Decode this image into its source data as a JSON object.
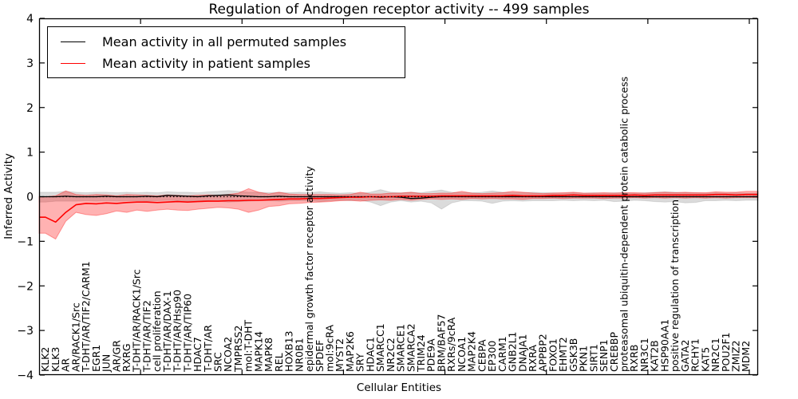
{
  "figure": {
    "title": "Regulation of Androgen receptor activity -- 499 samples"
  },
  "chart_data": {
    "type": "line",
    "title": "Regulation of Androgen receptor activity -- 499 samples",
    "xlabel": "Cellular Entities",
    "ylabel": "Inferred Activity",
    "ylim": [
      -4,
      4
    ],
    "grid": false,
    "legend_position": "upper left",
    "ytick_values": [
      4,
      3,
      2,
      1,
      0,
      -1,
      -2,
      -3,
      -4
    ],
    "ytick_labels": [
      "4",
      "3",
      "2",
      "1",
      "0",
      "−1",
      "−2",
      "−3",
      "−4"
    ],
    "xtick_values": [
      10,
      20,
      30,
      40,
      50,
      60,
      70
    ],
    "zero_line": {
      "value": 0,
      "style": "dotted",
      "color": "#000000"
    },
    "categories": [
      "KLK2",
      "KLK3",
      "AR",
      "AR/RACK1/Src",
      "T-DHT/AR/TIF2/CARM1",
      "EGR1",
      "JUN",
      "AR/GR",
      "RXRG",
      "T-DHT/AR/RACK1/Src",
      "T-DHT/AR/TIF2",
      "cell proliferation",
      "T-DHT/AR/DAX-1",
      "T-DHT/AR/Hsp90",
      "T-DHT/AR/TIP60",
      "HDAC7",
      "T-DHT/AR",
      "SRC",
      "NCOA2",
      "TMPRSS2",
      "mol:T-DHT",
      "MAPK14",
      "MAPK8",
      "REL",
      "HOXB13",
      "NR0B1",
      "epidermal growth factor receptor activity",
      "SPDEF",
      "mol:9cRA",
      "MYST2",
      "MAP2K6",
      "SRY",
      "HDAC1",
      "SMARCC1",
      "NR2C2",
      "SMARCE1",
      "SMARCA2",
      "TRIM24",
      "PDE9A",
      "BRM/BAF57",
      "RXRs/9cRA",
      "NCOA1",
      "MAP2K4",
      "CEBPA",
      "EP300",
      "CARM1",
      "GNB2L1",
      "DNAJA1",
      "RXRA",
      "APPBP2",
      "FOXO1",
      "EHMT2",
      "GSK3B",
      "PKN1",
      "SIRT1",
      "SENP1",
      "CREBBP",
      "proteasomal ubiquitin-dependent protein catabolic process",
      "RXRB",
      "NR3C1",
      "KAT2B",
      "HSP90AA1",
      "positive regulation of transcription",
      "GATA2",
      "RCHY1",
      "KAT5",
      "NR2C1",
      "POU2F1",
      "ZMIZ2",
      "MDM2"
    ],
    "series": [
      {
        "name": "Mean activity in all permuted samples",
        "color": "#000000",
        "line_width": 1.3,
        "band_color": "rgba(0,0,0,0.14)",
        "band_edge": "rgba(0,0,0,0.10)",
        "values": [
          0.0,
          0.0,
          0.01,
          0.0,
          0.0,
          0.0,
          0.01,
          0.0,
          0.0,
          0.0,
          0.01,
          0.0,
          0.03,
          0.02,
          0.01,
          0.0,
          0.02,
          0.03,
          0.04,
          0.02,
          0.01,
          0.0,
          0.0,
          0.01,
          0.0,
          0.0,
          0.0,
          0.0,
          0.0,
          0.0,
          0.0,
          0.0,
          0.0,
          -0.01,
          0.0,
          -0.01,
          -0.04,
          -0.03,
          -0.01,
          0.0,
          0.0,
          0.0,
          0.0,
          0.0,
          0.0,
          0.0,
          0.0,
          0.0,
          0.0,
          0.0,
          0.0,
          0.0,
          0.0,
          0.0,
          0.0,
          0.0,
          0.0,
          0.0,
          0.0,
          0.0,
          0.0,
          0.0,
          0.0,
          0.0,
          0.0,
          0.0,
          0.0,
          0.0,
          0.0,
          0.0
        ],
        "upper": [
          0.1,
          0.1,
          0.12,
          0.1,
          0.09,
          0.1,
          0.1,
          0.09,
          0.1,
          0.09,
          0.1,
          0.09,
          0.11,
          0.1,
          0.1,
          0.09,
          0.11,
          0.12,
          0.14,
          0.12,
          0.1,
          0.1,
          0.09,
          0.1,
          0.09,
          0.1,
          0.09,
          0.11,
          0.09,
          0.08,
          0.09,
          0.08,
          0.1,
          0.16,
          0.1,
          0.09,
          0.1,
          0.09,
          0.12,
          0.15,
          0.1,
          0.09,
          0.09,
          0.1,
          0.13,
          0.1,
          0.09,
          0.09,
          0.1,
          0.09,
          0.09,
          0.08,
          0.09,
          0.08,
          0.09,
          0.08,
          0.09,
          0.09,
          0.08,
          0.09,
          0.1,
          0.11,
          0.1,
          0.09,
          0.09,
          0.08,
          0.09,
          0.08,
          0.09,
          0.08
        ],
        "lower": [
          -0.12,
          -0.1,
          -0.1,
          -0.1,
          -0.09,
          -0.1,
          -0.09,
          -0.1,
          -0.09,
          -0.09,
          -0.1,
          -0.09,
          -0.08,
          -0.09,
          -0.1,
          -0.09,
          -0.09,
          -0.1,
          -0.12,
          -0.11,
          -0.1,
          -0.09,
          -0.09,
          -0.1,
          -0.09,
          -0.09,
          -0.09,
          -0.11,
          -0.09,
          -0.08,
          -0.09,
          -0.08,
          -0.12,
          -0.2,
          -0.12,
          -0.09,
          -0.12,
          -0.1,
          -0.14,
          -0.28,
          -0.14,
          -0.09,
          -0.09,
          -0.1,
          -0.15,
          -0.1,
          -0.09,
          -0.1,
          -0.09,
          -0.09,
          -0.09,
          -0.08,
          -0.09,
          -0.08,
          -0.09,
          -0.08,
          -0.11,
          -0.1,
          -0.08,
          -0.09,
          -0.11,
          -0.12,
          -0.11,
          -0.14,
          -0.13,
          -0.09,
          -0.09,
          -0.08,
          -0.09,
          -0.08
        ]
      },
      {
        "name": "Mean activity in patient samples",
        "color": "#ff0000",
        "line_width": 1.6,
        "band_color": "rgba(255,0,0,0.30)",
        "band_edge": "rgba(255,0,0,0.35)",
        "values": [
          -0.46,
          -0.57,
          -0.35,
          -0.18,
          -0.15,
          -0.16,
          -0.14,
          -0.15,
          -0.13,
          -0.12,
          -0.12,
          -0.13,
          -0.12,
          -0.11,
          -0.12,
          -0.11,
          -0.1,
          -0.1,
          -0.09,
          -0.09,
          -0.08,
          -0.08,
          -0.07,
          -0.06,
          -0.05,
          -0.05,
          -0.04,
          -0.04,
          -0.03,
          -0.02,
          -0.01,
          -0.01,
          0.0,
          0.0,
          0.0,
          0.01,
          0.01,
          0.01,
          0.01,
          0.02,
          0.02,
          0.02,
          0.02,
          0.02,
          0.02,
          0.02,
          0.03,
          0.02,
          0.02,
          0.02,
          0.03,
          0.03,
          0.04,
          0.03,
          0.03,
          0.03,
          0.03,
          0.03,
          0.04,
          0.03,
          0.04,
          0.04,
          0.04,
          0.04,
          0.04,
          0.04,
          0.05,
          0.05,
          0.04,
          0.05
        ],
        "upper": [
          0.0,
          0.02,
          0.13,
          0.05,
          0.03,
          0.05,
          0.04,
          0.02,
          0.05,
          0.04,
          0.03,
          0.02,
          0.04,
          0.03,
          0.02,
          0.03,
          0.04,
          0.03,
          0.05,
          0.08,
          0.18,
          0.1,
          0.06,
          0.1,
          0.06,
          0.05,
          0.05,
          0.05,
          0.05,
          0.04,
          0.05,
          0.1,
          0.06,
          0.06,
          0.08,
          0.08,
          0.1,
          0.07,
          0.07,
          0.08,
          0.08,
          0.12,
          0.08,
          0.07,
          0.08,
          0.09,
          0.12,
          0.1,
          0.08,
          0.07,
          0.08,
          0.09,
          0.1,
          0.08,
          0.08,
          0.09,
          0.08,
          0.09,
          0.09,
          0.08,
          0.09,
          0.1,
          0.09,
          0.1,
          0.09,
          0.09,
          0.11,
          0.1,
          0.1,
          0.12
        ],
        "lower": [
          -0.82,
          -0.95,
          -0.55,
          -0.35,
          -0.4,
          -0.42,
          -0.38,
          -0.32,
          -0.35,
          -0.3,
          -0.33,
          -0.3,
          -0.28,
          -0.3,
          -0.31,
          -0.28,
          -0.26,
          -0.24,
          -0.25,
          -0.28,
          -0.35,
          -0.3,
          -0.22,
          -0.2,
          -0.16,
          -0.15,
          -0.13,
          -0.12,
          -0.11,
          -0.09,
          -0.08,
          -0.1,
          -0.08,
          -0.07,
          -0.08,
          -0.06,
          -0.08,
          -0.06,
          -0.05,
          -0.06,
          -0.05,
          -0.06,
          -0.04,
          -0.05,
          -0.04,
          -0.05,
          -0.05,
          -0.06,
          -0.04,
          -0.04,
          -0.03,
          -0.04,
          -0.03,
          -0.03,
          -0.03,
          -0.04,
          -0.03,
          -0.03,
          -0.02,
          -0.03,
          -0.02,
          -0.03,
          -0.02,
          -0.03,
          -0.02,
          -0.03,
          -0.02,
          -0.03,
          -0.02,
          -0.02
        ]
      }
    ]
  }
}
